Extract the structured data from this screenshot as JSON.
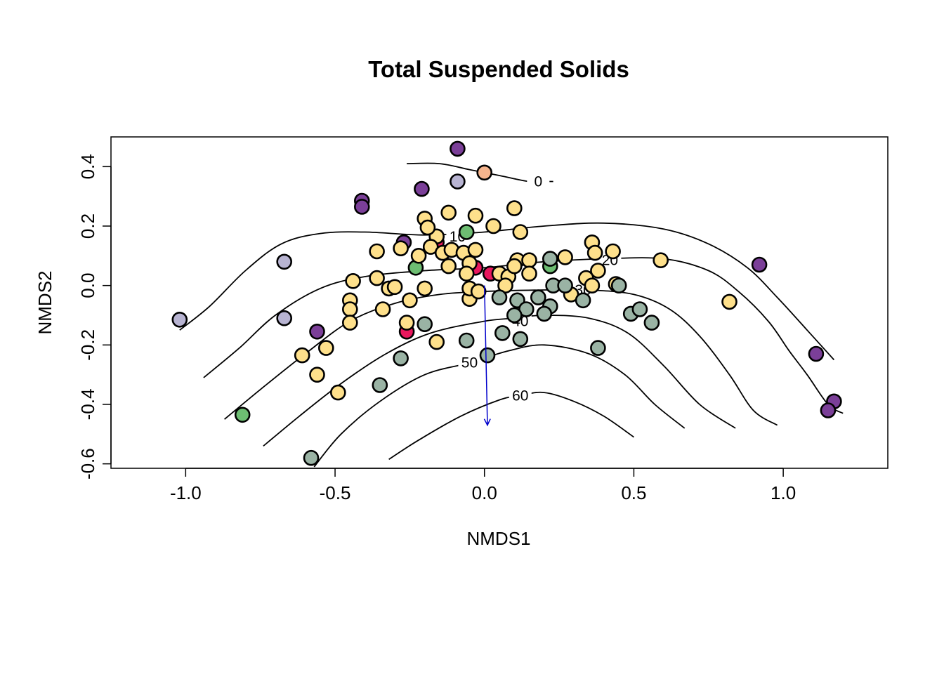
{
  "chart_data": {
    "type": "scatter",
    "title": "Total Suspended Solids",
    "xlabel": "NMDS1",
    "ylabel": "NMDS2",
    "xlim": [
      -1.25,
      1.35
    ],
    "ylim": [
      -0.615,
      0.5
    ],
    "x_ticks": [
      -1.0,
      -0.5,
      0.0,
      0.5,
      1.0
    ],
    "x_tick_labels": [
      "-1.0",
      "-0.5",
      "0.0",
      "0.5",
      "1.0"
    ],
    "y_ticks": [
      -0.6,
      -0.4,
      -0.2,
      0.0,
      0.2,
      0.4
    ],
    "y_tick_labels": [
      "-0.6",
      "-0.4",
      "-0.2",
      "0.0",
      "0.2",
      "0.4"
    ],
    "grid": false,
    "legend": "none",
    "colors": {
      "purple": "#7B3F98",
      "lavender": "#B8B4D2",
      "peach": "#F6B58E",
      "yellow": "#FEE08B",
      "crimson": "#E8175D",
      "green": "#6DBD72",
      "sage": "#9AB3A4",
      "arrow": "#0000CC"
    },
    "arrow": {
      "x0": 0.0,
      "y0": 0.0,
      "x1": 0.01,
      "y1": -0.47
    },
    "contours": [
      {
        "level": "0",
        "label_at": [
          0.18,
          0.35
        ],
        "points": [
          [
            -0.26,
            0.41
          ],
          [
            -0.15,
            0.41
          ],
          [
            -0.05,
            0.39
          ],
          [
            0.05,
            0.37
          ],
          [
            0.12,
            0.355
          ],
          [
            0.15,
            0.35
          ],
          [
            0.18,
            0.35
          ],
          [
            0.23,
            0.35
          ]
        ]
      },
      {
        "level": "10",
        "label_at": [
          -0.09,
          0.165
        ],
        "points": [
          [
            -1.02,
            -0.15
          ],
          [
            -0.92,
            -0.07
          ],
          [
            -0.8,
            0.05
          ],
          [
            -0.68,
            0.14
          ],
          [
            -0.55,
            0.175
          ],
          [
            -0.4,
            0.18
          ],
          [
            -0.2,
            0.17
          ],
          [
            0.0,
            0.18
          ],
          [
            0.2,
            0.2
          ],
          [
            0.4,
            0.21
          ],
          [
            0.6,
            0.19
          ],
          [
            0.75,
            0.14
          ],
          [
            0.88,
            0.06
          ],
          [
            0.98,
            -0.04
          ],
          [
            1.08,
            -0.15
          ],
          [
            1.17,
            -0.25
          ]
        ]
      },
      {
        "level": "20",
        "label_at": [
          0.42,
          0.085
        ],
        "points": [
          [
            -0.94,
            -0.31
          ],
          [
            -0.82,
            -0.21
          ],
          [
            -0.7,
            -0.1
          ],
          [
            -0.55,
            -0.01
          ],
          [
            -0.4,
            0.03
          ],
          [
            -0.2,
            0.05
          ],
          [
            0.0,
            0.06
          ],
          [
            0.2,
            0.08
          ],
          [
            0.4,
            0.09
          ],
          [
            0.6,
            0.09
          ],
          [
            0.75,
            0.05
          ],
          [
            0.85,
            -0.02
          ],
          [
            0.95,
            -0.12
          ],
          [
            1.02,
            -0.22
          ],
          [
            1.08,
            -0.3
          ],
          [
            1.15,
            -0.4
          ],
          [
            1.2,
            -0.43
          ]
        ]
      },
      {
        "level": "30",
        "label_at": [
          0.33,
          -0.015
        ],
        "points": [
          [
            -0.87,
            -0.45
          ],
          [
            -0.75,
            -0.35
          ],
          [
            -0.6,
            -0.23
          ],
          [
            -0.45,
            -0.12
          ],
          [
            -0.3,
            -0.06
          ],
          [
            -0.15,
            -0.03
          ],
          [
            0.0,
            -0.02
          ],
          [
            0.2,
            -0.015
          ],
          [
            0.35,
            -0.015
          ],
          [
            0.5,
            -0.03
          ],
          [
            0.62,
            -0.08
          ],
          [
            0.72,
            -0.17
          ],
          [
            0.82,
            -0.3
          ],
          [
            0.9,
            -0.42
          ],
          [
            0.98,
            -0.47
          ]
        ]
      },
      {
        "level": "40",
        "label_at": [
          0.12,
          -0.12
        ],
        "points": [
          [
            -0.74,
            -0.54
          ],
          [
            -0.62,
            -0.44
          ],
          [
            -0.48,
            -0.33
          ],
          [
            -0.33,
            -0.23
          ],
          [
            -0.18,
            -0.16
          ],
          [
            0.0,
            -0.12
          ],
          [
            0.1,
            -0.11
          ],
          [
            0.2,
            -0.1
          ],
          [
            0.35,
            -0.11
          ],
          [
            0.48,
            -0.16
          ],
          [
            0.6,
            -0.27
          ],
          [
            0.72,
            -0.4
          ],
          [
            0.84,
            -0.48
          ]
        ]
      },
      {
        "level": "50",
        "label_at": [
          -0.05,
          -0.26
        ],
        "points": [
          [
            -0.57,
            -0.61
          ],
          [
            -0.48,
            -0.5
          ],
          [
            -0.35,
            -0.39
          ],
          [
            -0.2,
            -0.3
          ],
          [
            -0.05,
            -0.26
          ],
          [
            0.08,
            -0.22
          ],
          [
            0.2,
            -0.2
          ],
          [
            0.35,
            -0.23
          ],
          [
            0.47,
            -0.3
          ],
          [
            0.57,
            -0.4
          ],
          [
            0.67,
            -0.48
          ]
        ]
      },
      {
        "level": "60",
        "label_at": [
          0.12,
          -0.37
        ],
        "points": [
          [
            -0.32,
            -0.585
          ],
          [
            -0.22,
            -0.52
          ],
          [
            -0.08,
            -0.44
          ],
          [
            0.05,
            -0.385
          ],
          [
            0.12,
            -0.37
          ],
          [
            0.2,
            -0.36
          ],
          [
            0.3,
            -0.39
          ],
          [
            0.4,
            -0.44
          ],
          [
            0.5,
            -0.51
          ]
        ]
      }
    ],
    "points": [
      {
        "x": -0.09,
        "y": 0.46,
        "c": "purple"
      },
      {
        "x": -0.21,
        "y": 0.325,
        "c": "purple"
      },
      {
        "x": -0.41,
        "y": 0.285,
        "c": "purple"
      },
      {
        "x": -0.41,
        "y": 0.265,
        "c": "purple"
      },
      {
        "x": -0.27,
        "y": 0.145,
        "c": "purple"
      },
      {
        "x": -0.56,
        "y": -0.155,
        "c": "purple"
      },
      {
        "x": 0.92,
        "y": 0.07,
        "c": "purple"
      },
      {
        "x": 1.11,
        "y": -0.23,
        "c": "purple"
      },
      {
        "x": 1.17,
        "y": -0.39,
        "c": "purple"
      },
      {
        "x": 1.15,
        "y": -0.42,
        "c": "purple"
      },
      {
        "x": -0.09,
        "y": 0.35,
        "c": "lavender"
      },
      {
        "x": -0.67,
        "y": 0.08,
        "c": "lavender"
      },
      {
        "x": -0.67,
        "y": -0.11,
        "c": "lavender"
      },
      {
        "x": -1.02,
        "y": -0.115,
        "c": "lavender"
      },
      {
        "x": 0.0,
        "y": 0.38,
        "c": "peach"
      },
      {
        "x": -0.16,
        "y": 0.145,
        "c": "crimson"
      },
      {
        "x": -0.03,
        "y": 0.06,
        "c": "crimson"
      },
      {
        "x": 0.02,
        "y": 0.04,
        "c": "crimson"
      },
      {
        "x": -0.26,
        "y": -0.155,
        "c": "crimson"
      },
      {
        "x": -0.06,
        "y": 0.18,
        "c": "green"
      },
      {
        "x": -0.23,
        "y": 0.06,
        "c": "green"
      },
      {
        "x": 0.22,
        "y": 0.065,
        "c": "green"
      },
      {
        "x": -0.81,
        "y": -0.435,
        "c": "green"
      },
      {
        "x": -0.2,
        "y": 0.225,
        "c": "yellow"
      },
      {
        "x": -0.12,
        "y": 0.245,
        "c": "yellow"
      },
      {
        "x": -0.03,
        "y": 0.235,
        "c": "yellow"
      },
      {
        "x": 0.1,
        "y": 0.26,
        "c": "yellow"
      },
      {
        "x": 0.03,
        "y": 0.2,
        "c": "yellow"
      },
      {
        "x": 0.12,
        "y": 0.18,
        "c": "yellow"
      },
      {
        "x": -0.16,
        "y": 0.165,
        "c": "yellow"
      },
      {
        "x": -0.19,
        "y": 0.195,
        "c": "yellow"
      },
      {
        "x": -0.22,
        "y": 0.1,
        "c": "yellow"
      },
      {
        "x": -0.18,
        "y": 0.13,
        "c": "yellow"
      },
      {
        "x": -0.14,
        "y": 0.11,
        "c": "yellow"
      },
      {
        "x": -0.11,
        "y": 0.12,
        "c": "yellow"
      },
      {
        "x": -0.07,
        "y": 0.11,
        "c": "yellow"
      },
      {
        "x": -0.03,
        "y": 0.12,
        "c": "yellow"
      },
      {
        "x": -0.05,
        "y": 0.075,
        "c": "yellow"
      },
      {
        "x": -0.12,
        "y": 0.065,
        "c": "yellow"
      },
      {
        "x": -0.28,
        "y": 0.125,
        "c": "yellow"
      },
      {
        "x": -0.36,
        "y": 0.115,
        "c": "yellow"
      },
      {
        "x": -0.44,
        "y": 0.015,
        "c": "yellow"
      },
      {
        "x": -0.36,
        "y": 0.025,
        "c": "yellow"
      },
      {
        "x": -0.32,
        "y": -0.01,
        "c": "yellow"
      },
      {
        "x": -0.3,
        "y": -0.005,
        "c": "yellow"
      },
      {
        "x": -0.2,
        "y": -0.01,
        "c": "yellow"
      },
      {
        "x": -0.45,
        "y": -0.05,
        "c": "yellow"
      },
      {
        "x": -0.45,
        "y": -0.08,
        "c": "yellow"
      },
      {
        "x": -0.34,
        "y": -0.08,
        "c": "yellow"
      },
      {
        "x": -0.25,
        "y": -0.05,
        "c": "yellow"
      },
      {
        "x": -0.45,
        "y": -0.125,
        "c": "yellow"
      },
      {
        "x": -0.26,
        "y": -0.125,
        "c": "yellow"
      },
      {
        "x": -0.16,
        "y": -0.19,
        "c": "yellow"
      },
      {
        "x": -0.53,
        "y": -0.21,
        "c": "yellow"
      },
      {
        "x": -0.61,
        "y": -0.235,
        "c": "yellow"
      },
      {
        "x": -0.56,
        "y": -0.3,
        "c": "yellow"
      },
      {
        "x": -0.49,
        "y": -0.36,
        "c": "yellow"
      },
      {
        "x": -0.06,
        "y": 0.04,
        "c": "yellow"
      },
      {
        "x": -0.05,
        "y": -0.045,
        "c": "yellow"
      },
      {
        "x": -0.05,
        "y": -0.01,
        "c": "yellow"
      },
      {
        "x": -0.02,
        "y": -0.02,
        "c": "yellow"
      },
      {
        "x": 0.05,
        "y": 0.04,
        "c": "yellow"
      },
      {
        "x": 0.08,
        "y": 0.03,
        "c": "yellow"
      },
      {
        "x": 0.07,
        "y": 0.0,
        "c": "yellow"
      },
      {
        "x": 0.11,
        "y": 0.085,
        "c": "yellow"
      },
      {
        "x": 0.15,
        "y": 0.085,
        "c": "yellow"
      },
      {
        "x": 0.15,
        "y": 0.04,
        "c": "yellow"
      },
      {
        "x": 0.1,
        "y": 0.065,
        "c": "yellow"
      },
      {
        "x": 0.27,
        "y": 0.095,
        "c": "yellow"
      },
      {
        "x": 0.36,
        "y": 0.145,
        "c": "yellow"
      },
      {
        "x": 0.37,
        "y": 0.11,
        "c": "yellow"
      },
      {
        "x": 0.43,
        "y": 0.115,
        "c": "yellow"
      },
      {
        "x": 0.38,
        "y": 0.05,
        "c": "yellow"
      },
      {
        "x": 0.34,
        "y": 0.025,
        "c": "yellow"
      },
      {
        "x": 0.36,
        "y": 0.0,
        "c": "yellow"
      },
      {
        "x": 0.44,
        "y": 0.005,
        "c": "yellow"
      },
      {
        "x": 0.29,
        "y": -0.03,
        "c": "yellow"
      },
      {
        "x": 0.59,
        "y": 0.085,
        "c": "yellow"
      },
      {
        "x": 0.82,
        "y": -0.055,
        "c": "yellow"
      },
      {
        "x": 0.05,
        "y": -0.04,
        "c": "sage"
      },
      {
        "x": 0.11,
        "y": -0.05,
        "c": "sage"
      },
      {
        "x": 0.14,
        "y": -0.08,
        "c": "sage"
      },
      {
        "x": 0.18,
        "y": -0.04,
        "c": "sage"
      },
      {
        "x": 0.22,
        "y": -0.07,
        "c": "sage"
      },
      {
        "x": 0.2,
        "y": -0.095,
        "c": "sage"
      },
      {
        "x": 0.1,
        "y": -0.1,
        "c": "sage"
      },
      {
        "x": 0.06,
        "y": -0.16,
        "c": "sage"
      },
      {
        "x": 0.12,
        "y": -0.18,
        "c": "sage"
      },
      {
        "x": 0.22,
        "y": 0.09,
        "c": "sage"
      },
      {
        "x": 0.23,
        "y": 0.0,
        "c": "sage"
      },
      {
        "x": 0.27,
        "y": 0.0,
        "c": "sage"
      },
      {
        "x": 0.33,
        "y": -0.05,
        "c": "sage"
      },
      {
        "x": 0.45,
        "y": 0.0,
        "c": "sage"
      },
      {
        "x": 0.49,
        "y": -0.095,
        "c": "sage"
      },
      {
        "x": 0.52,
        "y": -0.08,
        "c": "sage"
      },
      {
        "x": 0.56,
        "y": -0.125,
        "c": "sage"
      },
      {
        "x": 0.38,
        "y": -0.21,
        "c": "sage"
      },
      {
        "x": 0.01,
        "y": -0.235,
        "c": "sage"
      },
      {
        "x": -0.06,
        "y": -0.185,
        "c": "sage"
      },
      {
        "x": -0.2,
        "y": -0.13,
        "c": "sage"
      },
      {
        "x": -0.28,
        "y": -0.245,
        "c": "sage"
      },
      {
        "x": -0.35,
        "y": -0.335,
        "c": "sage"
      },
      {
        "x": -0.58,
        "y": -0.58,
        "c": "sage"
      }
    ]
  }
}
